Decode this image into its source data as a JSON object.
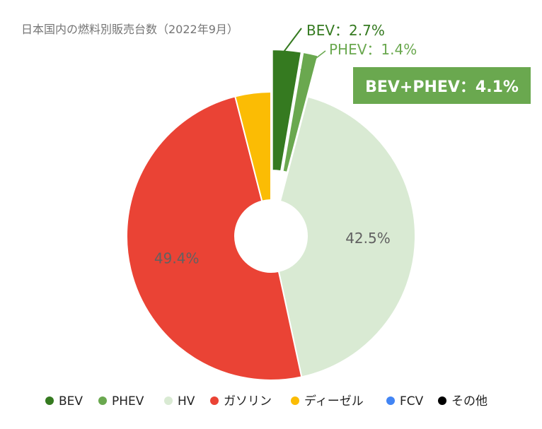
{
  "title": "日本国内の燃料別販売台数（2022年9月）",
  "chart_data": {
    "type": "pie",
    "donut": true,
    "categories": [
      "BEV",
      "PHEV",
      "HV",
      "ガソリン",
      "ディーゼル",
      "FCV",
      "その他"
    ],
    "values": [
      2.7,
      1.4,
      42.5,
      49.4,
      4.0,
      0.0,
      0.0
    ],
    "colors": [
      "#357a20",
      "#6aa84f",
      "#d9ead3",
      "#ea4335",
      "#fbbc04",
      "#4285f4",
      "#000000"
    ],
    "slice_labels": [
      "",
      "",
      "42.5%",
      "49.4%",
      "",
      "",
      ""
    ],
    "exploded": [
      "BEV",
      "PHEV"
    ],
    "legend_position": "bottom"
  },
  "callouts": [
    {
      "text": "BEV：2.7%",
      "color": "#357a20"
    },
    {
      "text": "PHEV：1.4%",
      "color": "#6aa84f"
    }
  ],
  "badge": {
    "text": "BEV+PHEV：4.1%",
    "color": "#6aa84f"
  }
}
